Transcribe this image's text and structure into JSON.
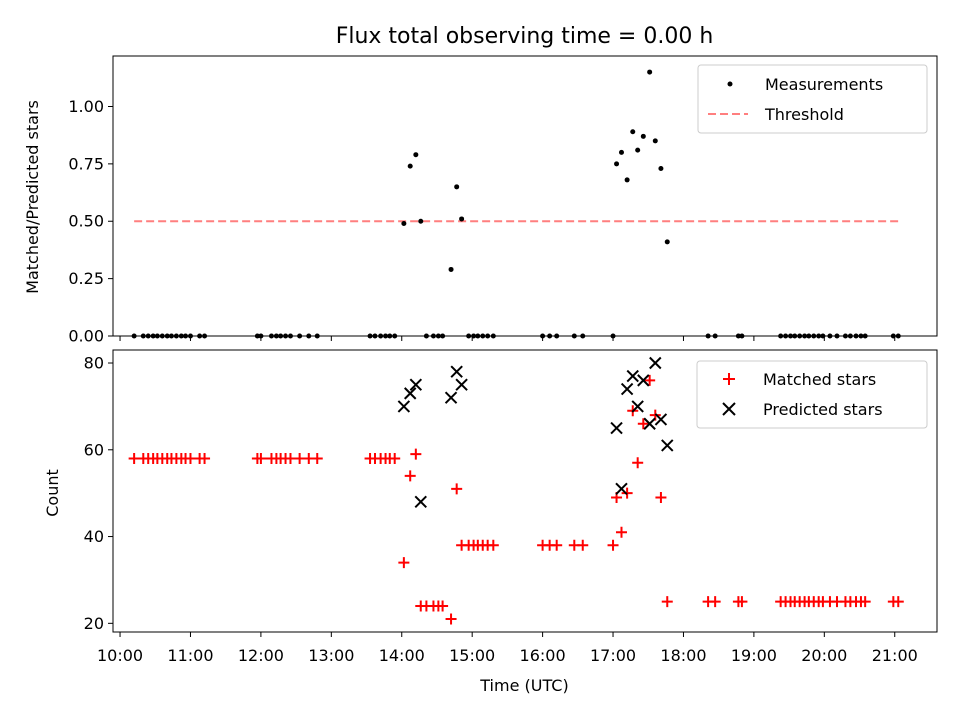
{
  "chart_data": [
    {
      "type": "scatter",
      "title": "Flux total observing time = 0.00 h",
      "xlabel": "",
      "ylabel": "Matched/Predicted stars",
      "xlim": [
        9.9,
        21.6
      ],
      "ylim": [
        0.0,
        1.22
      ],
      "yticks": [
        0.0,
        0.25,
        0.5,
        0.75,
        1.0
      ],
      "ytick_labels": [
        "0.00",
        "0.25",
        "0.50",
        "0.75",
        "1.00"
      ],
      "legend_position": "top-right",
      "legend": [
        "Measurements",
        "Threshold"
      ],
      "colors": {
        "measurements": "#000000",
        "threshold": "#ff7f7f"
      },
      "threshold": {
        "value": 0.5,
        "x_range": [
          10.2,
          21.05
        ]
      },
      "series": [
        {
          "name": "Measurements",
          "marker": "dot",
          "points": [
            [
              10.2,
              0
            ],
            [
              10.33,
              0
            ],
            [
              10.4,
              0
            ],
            [
              10.47,
              0
            ],
            [
              10.53,
              0
            ],
            [
              10.6,
              0
            ],
            [
              10.67,
              0
            ],
            [
              10.73,
              0
            ],
            [
              10.8,
              0
            ],
            [
              10.87,
              0
            ],
            [
              10.93,
              0
            ],
            [
              11.0,
              0
            ],
            [
              11.13,
              0
            ],
            [
              11.2,
              0
            ],
            [
              11.95,
              0
            ],
            [
              12.0,
              0
            ],
            [
              12.15,
              0
            ],
            [
              12.22,
              0
            ],
            [
              12.28,
              0
            ],
            [
              12.35,
              0
            ],
            [
              12.42,
              0
            ],
            [
              12.55,
              0
            ],
            [
              12.68,
              0
            ],
            [
              12.8,
              0
            ],
            [
              13.55,
              0
            ],
            [
              13.62,
              0
            ],
            [
              13.7,
              0
            ],
            [
              13.77,
              0
            ],
            [
              13.83,
              0
            ],
            [
              13.9,
              0
            ],
            [
              14.03,
              0.49
            ],
            [
              14.12,
              0.74
            ],
            [
              14.2,
              0.79
            ],
            [
              14.27,
              0.5
            ],
            [
              14.35,
              0
            ],
            [
              14.45,
              0
            ],
            [
              14.52,
              0
            ],
            [
              14.58,
              0
            ],
            [
              14.7,
              0.29
            ],
            [
              14.78,
              0.65
            ],
            [
              14.85,
              0.51
            ],
            [
              14.95,
              0
            ],
            [
              15.02,
              0
            ],
            [
              15.08,
              0
            ],
            [
              15.15,
              0
            ],
            [
              15.22,
              0
            ],
            [
              15.3,
              0
            ],
            [
              16.0,
              0
            ],
            [
              16.1,
              0
            ],
            [
              16.2,
              0
            ],
            [
              16.45,
              0
            ],
            [
              16.57,
              0
            ],
            [
              17.0,
              0
            ],
            [
              17.05,
              0.75
            ],
            [
              17.12,
              0.8
            ],
            [
              17.2,
              0.68
            ],
            [
              17.28,
              0.89
            ],
            [
              17.35,
              0.81
            ],
            [
              17.43,
              0.87
            ],
            [
              17.52,
              1.15
            ],
            [
              17.6,
              0.85
            ],
            [
              17.68,
              0.73
            ],
            [
              17.77,
              0.41
            ],
            [
              18.35,
              0
            ],
            [
              18.45,
              0
            ],
            [
              18.78,
              0
            ],
            [
              18.83,
              0
            ],
            [
              19.38,
              0
            ],
            [
              19.45,
              0
            ],
            [
              19.52,
              0
            ],
            [
              19.58,
              0
            ],
            [
              19.65,
              0
            ],
            [
              19.72,
              0
            ],
            [
              19.78,
              0
            ],
            [
              19.85,
              0
            ],
            [
              19.92,
              0
            ],
            [
              19.98,
              0
            ],
            [
              20.08,
              0
            ],
            [
              20.18,
              0
            ],
            [
              20.3,
              0
            ],
            [
              20.37,
              0
            ],
            [
              20.45,
              0
            ],
            [
              20.52,
              0
            ],
            [
              20.58,
              0
            ],
            [
              20.98,
              0
            ],
            [
              21.05,
              0
            ]
          ]
        }
      ]
    },
    {
      "type": "scatter",
      "title": "",
      "xlabel": "Time (UTC)",
      "ylabel": "Count",
      "xlim": [
        9.9,
        21.6
      ],
      "ylim": [
        18,
        83
      ],
      "yticks": [
        20,
        40,
        60,
        80
      ],
      "ytick_labels": [
        "20",
        "40",
        "60",
        "80"
      ],
      "xticks": [
        10,
        11,
        12,
        13,
        14,
        15,
        16,
        17,
        18,
        19,
        20,
        21
      ],
      "xtick_labels": [
        "10:00",
        "11:00",
        "12:00",
        "13:00",
        "14:00",
        "15:00",
        "16:00",
        "17:00",
        "18:00",
        "19:00",
        "20:00",
        "21:00"
      ],
      "legend_position": "top-right",
      "legend": [
        "Matched stars",
        "Predicted stars"
      ],
      "colors": {
        "matched": "#ff0000",
        "predicted": "#000000"
      },
      "series": [
        {
          "name": "Matched stars",
          "marker": "plus",
          "points": [
            [
              10.2,
              58
            ],
            [
              10.33,
              58
            ],
            [
              10.4,
              58
            ],
            [
              10.47,
              58
            ],
            [
              10.53,
              58
            ],
            [
              10.6,
              58
            ],
            [
              10.67,
              58
            ],
            [
              10.73,
              58
            ],
            [
              10.8,
              58
            ],
            [
              10.87,
              58
            ],
            [
              10.93,
              58
            ],
            [
              11.0,
              58
            ],
            [
              11.13,
              58
            ],
            [
              11.2,
              58
            ],
            [
              11.95,
              58
            ],
            [
              12.0,
              58
            ],
            [
              12.15,
              58
            ],
            [
              12.22,
              58
            ],
            [
              12.28,
              58
            ],
            [
              12.35,
              58
            ],
            [
              12.42,
              58
            ],
            [
              12.55,
              58
            ],
            [
              12.68,
              58
            ],
            [
              12.8,
              58
            ],
            [
              13.55,
              58
            ],
            [
              13.62,
              58
            ],
            [
              13.7,
              58
            ],
            [
              13.77,
              58
            ],
            [
              13.83,
              58
            ],
            [
              13.9,
              58
            ],
            [
              14.03,
              34
            ],
            [
              14.12,
              54
            ],
            [
              14.2,
              59
            ],
            [
              14.27,
              24
            ],
            [
              14.35,
              24
            ],
            [
              14.45,
              24
            ],
            [
              14.52,
              24
            ],
            [
              14.58,
              24
            ],
            [
              14.7,
              21
            ],
            [
              14.78,
              51
            ],
            [
              14.85,
              38
            ],
            [
              14.95,
              38
            ],
            [
              15.02,
              38
            ],
            [
              15.08,
              38
            ],
            [
              15.15,
              38
            ],
            [
              15.22,
              38
            ],
            [
              15.3,
              38
            ],
            [
              16.0,
              38
            ],
            [
              16.1,
              38
            ],
            [
              16.2,
              38
            ],
            [
              16.45,
              38
            ],
            [
              16.57,
              38
            ],
            [
              17.0,
              38
            ],
            [
              17.05,
              49
            ],
            [
              17.12,
              41
            ],
            [
              17.2,
              50
            ],
            [
              17.28,
              69
            ],
            [
              17.35,
              57
            ],
            [
              17.43,
              66
            ],
            [
              17.52,
              76
            ],
            [
              17.6,
              68
            ],
            [
              17.68,
              49
            ],
            [
              17.77,
              25
            ],
            [
              18.35,
              25
            ],
            [
              18.45,
              25
            ],
            [
              18.78,
              25
            ],
            [
              18.83,
              25
            ],
            [
              19.38,
              25
            ],
            [
              19.45,
              25
            ],
            [
              19.52,
              25
            ],
            [
              19.58,
              25
            ],
            [
              19.65,
              25
            ],
            [
              19.72,
              25
            ],
            [
              19.78,
              25
            ],
            [
              19.85,
              25
            ],
            [
              19.92,
              25
            ],
            [
              19.98,
              25
            ],
            [
              20.08,
              25
            ],
            [
              20.18,
              25
            ],
            [
              20.3,
              25
            ],
            [
              20.37,
              25
            ],
            [
              20.45,
              25
            ],
            [
              20.52,
              25
            ],
            [
              20.58,
              25
            ],
            [
              20.98,
              25
            ],
            [
              21.05,
              25
            ]
          ]
        },
        {
          "name": "Predicted stars",
          "marker": "x",
          "points": [
            [
              14.03,
              70
            ],
            [
              14.12,
              73
            ],
            [
              14.2,
              75
            ],
            [
              14.27,
              48
            ],
            [
              14.7,
              72
            ],
            [
              14.78,
              78
            ],
            [
              14.85,
              75
            ],
            [
              17.05,
              65
            ],
            [
              17.12,
              51
            ],
            [
              17.2,
              74
            ],
            [
              17.28,
              77
            ],
            [
              17.35,
              70
            ],
            [
              17.43,
              76
            ],
            [
              17.52,
              66
            ],
            [
              17.6,
              80
            ],
            [
              17.68,
              67
            ],
            [
              17.77,
              61
            ]
          ]
        }
      ]
    }
  ]
}
